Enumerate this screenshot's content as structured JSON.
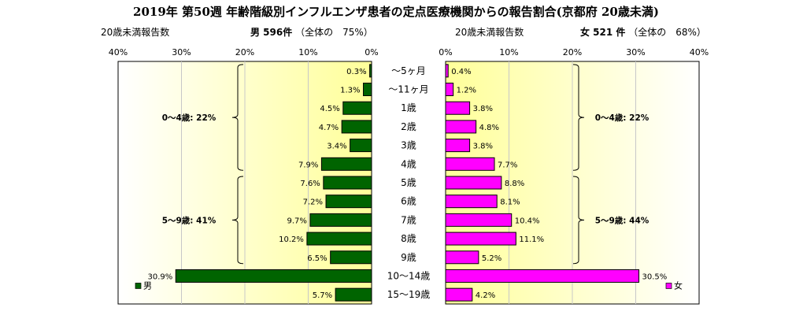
{
  "header": {
    "title": "2019年 第50週 年齢階級別インフルエンザ患者の定点医療機関からの報告割合(京都府 20歳未満)",
    "left_caption": "20歳未満報告数",
    "left_summary": "男 596件",
    "left_share": "（全体の　75%）",
    "right_caption": "20歳未満報告数",
    "right_summary": "女 521 件",
    "right_share": "（全体の　68%）"
  },
  "chart_data": {
    "type": "bar",
    "orientation": "horizontal",
    "title": "2019年 第50週 年齢階級別インフルエンザ患者の定点医療機関からの報告割合(京都府 20歳未満)",
    "categories": [
      "～5ヶ月",
      "～11ヶ月",
      "1歳",
      "2歳",
      "3歳",
      "4歳",
      "5歳",
      "6歳",
      "7歳",
      "8歳",
      "9歳",
      "10～14歳",
      "15～19歳"
    ],
    "series": [
      {
        "name": "男",
        "color": "#006400",
        "values": [
          0.3,
          1.3,
          4.5,
          4.7,
          3.4,
          7.9,
          7.6,
          7.2,
          9.7,
          10.2,
          6.5,
          30.9,
          5.7
        ],
        "labels": [
          "0.3%",
          "1.3%",
          "4.5%",
          "4.7%",
          "3.4%",
          "7.9%",
          "7.6%",
          "7.2%",
          "9.7%",
          "10.2%",
          "6.5%",
          "30.9%",
          "5.7%"
        ]
      },
      {
        "name": "女",
        "color": "#ff00ff",
        "values": [
          0.4,
          1.2,
          3.8,
          4.8,
          3.8,
          7.7,
          8.8,
          8.1,
          10.4,
          11.1,
          5.2,
          30.5,
          4.2
        ],
        "labels": [
          "0.4%",
          "1.2%",
          "3.8%",
          "4.8%",
          "3.8%",
          "7.7%",
          "8.8%",
          "8.1%",
          "10.4%",
          "11.1%",
          "5.2%",
          "30.5%",
          "4.2%"
        ]
      }
    ],
    "xlim": [
      0,
      40
    ],
    "ticks": [
      "40%",
      "30%",
      "20%",
      "10%",
      "0%"
    ],
    "ticks_right": [
      "0%",
      "10%",
      "20%",
      "30%",
      "40%"
    ],
    "groups": {
      "left": [
        {
          "label": "0～4歳: 22%",
          "from": 0,
          "to": 5
        },
        {
          "label": "5～9歳: 41%",
          "from": 6,
          "to": 10
        }
      ],
      "right": [
        {
          "label": "0～4歳: 22%",
          "from": 0,
          "to": 5
        },
        {
          "label": "5～9歳: 44%",
          "from": 6,
          "to": 10
        }
      ]
    },
    "legend": {
      "left": "男",
      "right": "女",
      "placement": "bottom"
    },
    "grid": true
  }
}
